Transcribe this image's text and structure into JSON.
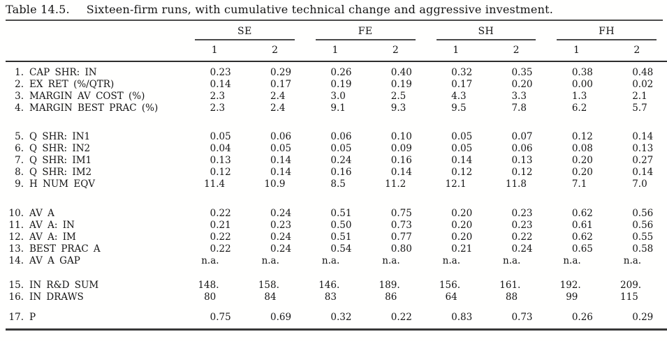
{
  "title": {
    "label": "Table 14.5.",
    "caption": "Sixteen-firm runs, with cumulative technical change and aggressive investment."
  },
  "columns": {
    "groups": [
      "SE",
      "FE",
      "SH",
      "FH"
    ],
    "subs": [
      "1",
      "2"
    ]
  },
  "table": {
    "groups": [
      {
        "rows": [
          {
            "num": "1.",
            "label": "CAP SHR: IN",
            "values": [
              "0.23",
              "0.29",
              "0.26",
              "0.40",
              "0.32",
              "0.35",
              "0.38",
              "0.48"
            ]
          },
          {
            "num": "2.",
            "label": "EX RET (%/QTR)",
            "values": [
              "0.14",
              "0.17",
              "0.19",
              "0.19",
              "0.17",
              "0.20",
              "0.00",
              "0.02"
            ]
          },
          {
            "num": "3.",
            "label": "MARGIN AV COST (%)",
            "values": [
              "2.3",
              "2.4",
              "3.0",
              "2.5",
              "4.3",
              "3.3",
              "1.3",
              "2.1"
            ]
          },
          {
            "num": "4.",
            "label": "MARGIN BEST PRAC (%)",
            "values": [
              "2.3",
              "2.4",
              "9.1",
              "9.3",
              "9.5",
              "7.8",
              "6.2",
              "5.7"
            ]
          }
        ]
      },
      {
        "rows": [
          {
            "num": "5.",
            "label": "Q SHR: IN1",
            "values": [
              "0.05",
              "0.06",
              "0.06",
              "0.10",
              "0.05",
              "0.07",
              "0.12",
              "0.14"
            ]
          },
          {
            "num": "6.",
            "label": "Q SHR: IN2",
            "values": [
              "0.04",
              "0.05",
              "0.05",
              "0.09",
              "0.05",
              "0.06",
              "0.08",
              "0.13"
            ]
          },
          {
            "num": "7.",
            "label": "Q SHR: IM1",
            "values": [
              "0.13",
              "0.14",
              "0.24",
              "0.16",
              "0.14",
              "0.13",
              "0.20",
              "0.27"
            ]
          },
          {
            "num": "8.",
            "label": "Q SHR: IM2",
            "values": [
              "0.12",
              "0.14",
              "0.16",
              "0.14",
              "0.12",
              "0.12",
              "0.20",
              "0.14"
            ]
          },
          {
            "num": "9.",
            "label": "H NUM EQV",
            "values": [
              "11.4",
              "10.9",
              "8.5",
              "11.2",
              "12.1",
              "11.8",
              "7.1",
              "7.0"
            ]
          }
        ]
      },
      {
        "rows": [
          {
            "num": "10.",
            "label": "AV A",
            "values": [
              "0.22",
              "0.24",
              "0.51",
              "0.75",
              "0.20",
              "0.23",
              "0.62",
              "0.56"
            ]
          },
          {
            "num": "11.",
            "label": "AV A: IN",
            "values": [
              "0.21",
              "0.23",
              "0.50",
              "0.73",
              "0.20",
              "0.23",
              "0.61",
              "0.56"
            ]
          },
          {
            "num": "12.",
            "label": "AV A: IM",
            "values": [
              "0.22",
              "0.24",
              "0.51",
              "0.77",
              "0.20",
              "0.22",
              "0.62",
              "0.55"
            ]
          },
          {
            "num": "13.",
            "label": "BEST PRAC A",
            "values": [
              "0.22",
              "0.24",
              "0.54",
              "0.80",
              "0.21",
              "0.24",
              "0.65",
              "0.58"
            ]
          },
          {
            "num": "14.",
            "label": "AV A GAP",
            "values": [
              "n.a.",
              "n.a.",
              "n.a.",
              "n.a.",
              "n.a.",
              "n.a.",
              "n.a.",
              "n.a."
            ]
          }
        ]
      },
      {
        "rows": [
          {
            "num": "15.",
            "label": "IN R&D SUM",
            "values": [
              "148.",
              "158.",
              "146.",
              "189.",
              "156.",
              "161.",
              "192.",
              "209."
            ]
          },
          {
            "num": "16.",
            "label": "IN DRAWS",
            "values": [
              "80",
              "84",
              "83",
              "86",
              "64",
              "88",
              "99",
              "115"
            ]
          }
        ]
      },
      {
        "rows": [
          {
            "num": "17.",
            "label": "P",
            "values": [
              "0.75",
              "0.69",
              "0.32",
              "0.22",
              "0.83",
              "0.73",
              "0.26",
              "0.29"
            ]
          }
        ]
      }
    ]
  },
  "rules": {
    "color_thin": "#4a4a4a",
    "color_thick": "#2d2d2d"
  }
}
